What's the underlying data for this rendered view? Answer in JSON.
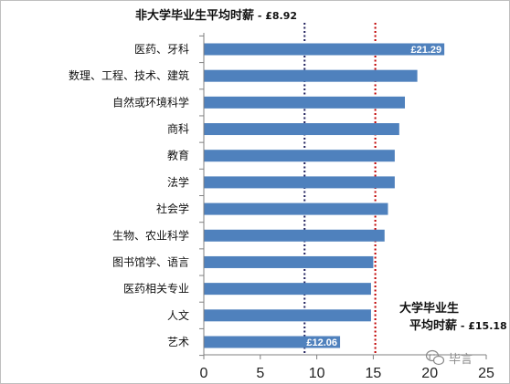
{
  "chart_data": {
    "type": "bar",
    "orientation": "horizontal",
    "categories": [
      "医药、牙科",
      "数理、工程、技术、建筑",
      "自然或环境科学",
      "商科",
      "教育",
      "法学",
      "社会学",
      "生物、农业科学",
      "图书馆学、语言",
      "医药相关专业",
      "人文",
      "艺术"
    ],
    "values": [
      21.29,
      18.9,
      17.8,
      17.3,
      16.9,
      16.9,
      16.3,
      16.0,
      15.0,
      14.8,
      14.8,
      12.06
    ],
    "xlim": [
      0,
      25
    ],
    "xticks": [
      "0",
      "5",
      "10",
      "15",
      "20",
      "25"
    ],
    "xlabel": "",
    "ylabel": "",
    "grid": false,
    "data_labels": [
      {
        "index": 0,
        "text": "£21.29"
      },
      {
        "index": 11,
        "text": "£12.06"
      }
    ],
    "reference_lines": [
      {
        "value": 8.92,
        "color": "#1f1f5c",
        "style": "dotted",
        "label_main": "非大学毕业生平均时薪",
        "label_value": " - £8.92"
      },
      {
        "value": 15.18,
        "color": "#c00000",
        "style": "dotted",
        "label_line1": "大学毕业生",
        "label_line2": "平均时薪",
        "label_value": " - £15.18"
      }
    ],
    "bar_color": "#4f81bd"
  },
  "watermark": {
    "text": "毕言",
    "icon": "wechat-icon"
  }
}
